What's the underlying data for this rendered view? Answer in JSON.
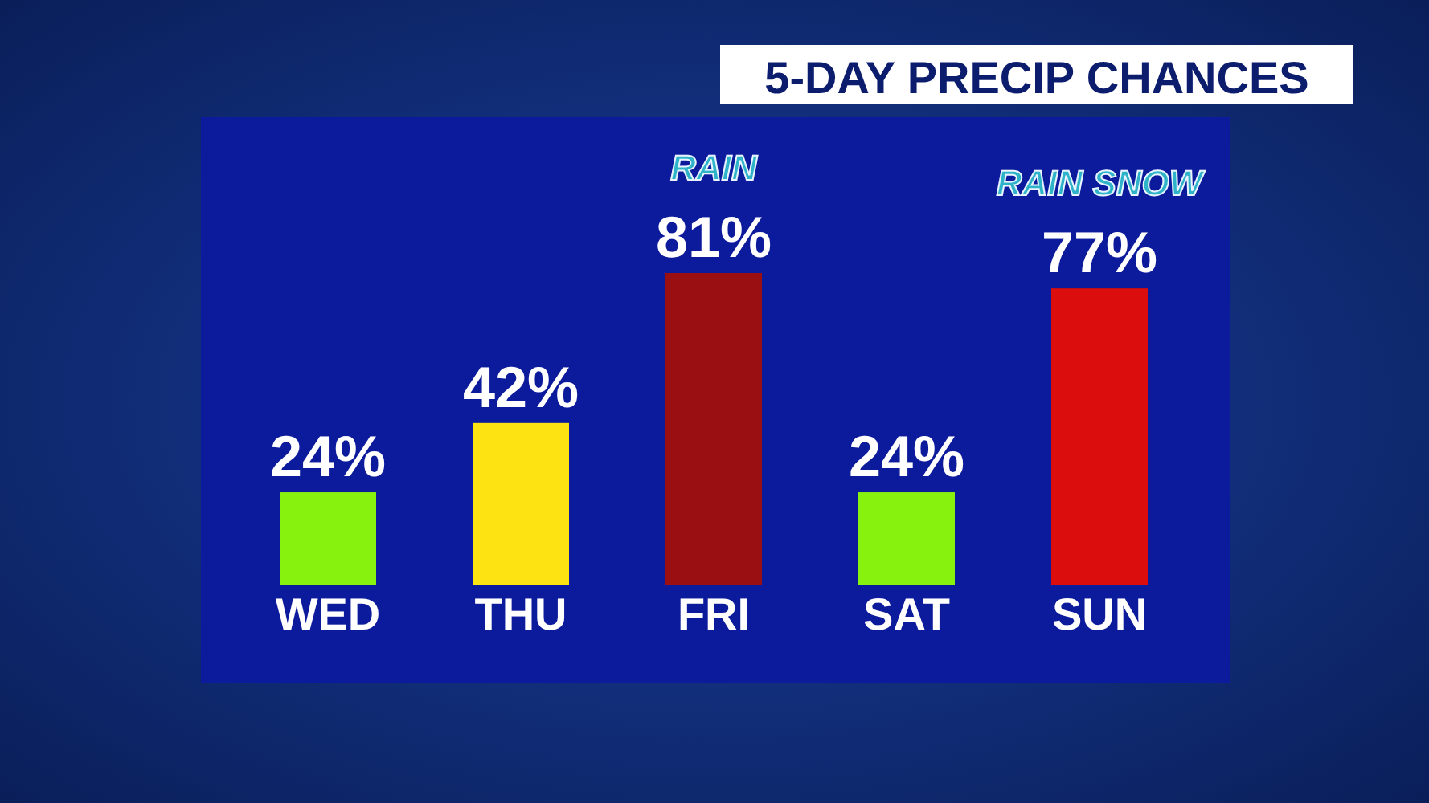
{
  "chart_data": {
    "type": "bar",
    "title": "5-DAY PRECIP CHANCES",
    "categories": [
      "WED",
      "THU",
      "FRI",
      "SAT",
      "SUN"
    ],
    "values": [
      24,
      42,
      81,
      24,
      77
    ],
    "value_labels": [
      "24%",
      "42%",
      "81%",
      "24%",
      "77%"
    ],
    "colors": [
      "#86f20e",
      "#fee312",
      "#9a1012",
      "#86f20e",
      "#dc0d0d"
    ],
    "annotations": [
      {
        "text": "RAIN",
        "x": "FRI",
        "y": 81
      },
      {
        "text": "RAIN SNOW",
        "x": "SUN",
        "y": 77
      }
    ]
  }
}
